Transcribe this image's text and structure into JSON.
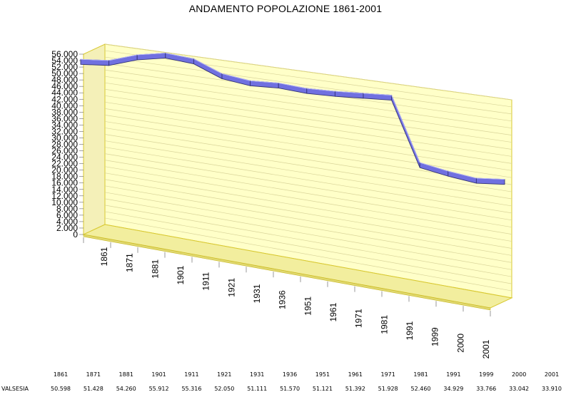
{
  "chart_data": {
    "type": "line",
    "title": "ANDAMENTO POPOLAZIONE 1861-2001",
    "xlabel": "",
    "ylabel": "",
    "ylim": [
      0,
      56000
    ],
    "grid": true,
    "y_ticks": [
      "0",
      "2.000",
      "4.000",
      "6.000",
      "8.000",
      "10.000",
      "12.000",
      "14.000",
      "16.000",
      "18.000",
      "20.000",
      "22.000",
      "24.000",
      "26.000",
      "28.000",
      "30.000",
      "32.000",
      "34.000",
      "36.000",
      "38.000",
      "40.000",
      "42.000",
      "44.000",
      "46.000",
      "48.000",
      "50.000",
      "52.000",
      "54.000",
      "56.000"
    ],
    "categories": [
      "1861",
      "1871",
      "1881",
      "1901",
      "1911",
      "1921",
      "1931",
      "1936",
      "1951",
      "1961",
      "1971",
      "1981",
      "1991",
      "1999",
      "2000",
      "2001"
    ],
    "series": [
      {
        "values": [
          50598,
          51428,
          54260,
          55912,
          55316,
          52050,
          51111,
          51570,
          51121,
          51392,
          51928,
          52460,
          34929,
          33766,
          33042,
          33910
        ]
      }
    ],
    "table": {
      "row_label": "VALSESIA",
      "years": [
        "1861",
        "1871",
        "1881",
        "1901",
        "1911",
        "1921",
        "1931",
        "1936",
        "1951",
        "1961",
        "1971",
        "1981",
        "1991",
        "1999",
        "2000",
        "2001"
      ],
      "values": [
        "50.598",
        "51.428",
        "54.260",
        "55.912",
        "55.316",
        "52.050",
        "51.111",
        "51.570",
        "51.121",
        "51.392",
        "51.928",
        "52.460",
        "34.929",
        "33.766",
        "33.042",
        "33.910"
      ]
    }
  }
}
